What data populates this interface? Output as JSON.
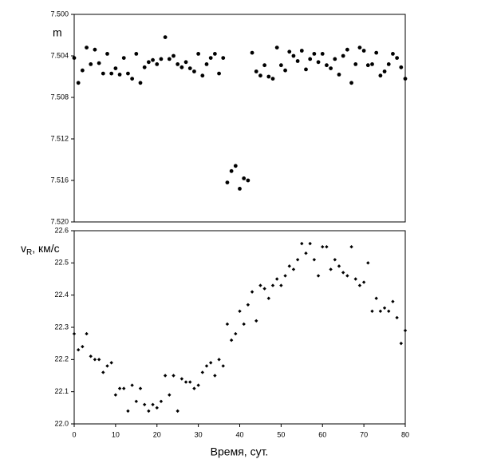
{
  "chart_data": [
    {
      "type": "scatter",
      "ylabel": "m",
      "color": "#000000",
      "marker": "circle",
      "y_inverted": true,
      "xlim": [
        0,
        80
      ],
      "ylim": [
        7.5,
        7.52
      ],
      "yticks": [
        {
          "value": 7.5,
          "label": "7.500"
        },
        {
          "value": 7.504,
          "label": "7.504"
        },
        {
          "value": 7.508,
          "label": "7.508"
        },
        {
          "value": 7.512,
          "label": "7.512"
        },
        {
          "value": 7.516,
          "label": "7.516"
        },
        {
          "value": 7.52,
          "label": "7.520"
        }
      ],
      "x": [
        0,
        1,
        2,
        3,
        4,
        5,
        6,
        7,
        8,
        9,
        10,
        11,
        12,
        13,
        14,
        15,
        16,
        17,
        18,
        19,
        20,
        21,
        22,
        23,
        24,
        25,
        26,
        27,
        28,
        29,
        30,
        31,
        32,
        33,
        34,
        35,
        36,
        37,
        38,
        39,
        40,
        41,
        42,
        43,
        44,
        45,
        46,
        47,
        48,
        49,
        50,
        51,
        52,
        53,
        54,
        55,
        56,
        57,
        58,
        59,
        60,
        61,
        62,
        63,
        64,
        65,
        66,
        67,
        68,
        69,
        70,
        71,
        72,
        73,
        74,
        75,
        76,
        77,
        78,
        79,
        80
      ],
      "values": [
        7.5042,
        7.5066,
        7.5054,
        7.5032,
        7.5048,
        7.5034,
        7.5047,
        7.5057,
        7.5038,
        7.5057,
        7.5052,
        7.5058,
        7.5042,
        7.5057,
        7.5062,
        7.5038,
        7.5066,
        7.5051,
        7.5046,
        7.5044,
        7.5048,
        7.5043,
        7.5022,
        7.5043,
        7.504,
        7.5048,
        7.5051,
        7.5046,
        7.5052,
        7.5055,
        7.5038,
        7.5059,
        7.5048,
        7.5042,
        7.5038,
        7.5057,
        7.5042,
        7.5162,
        7.5151,
        7.5146,
        7.5168,
        7.5158,
        7.516,
        7.5037,
        7.5055,
        7.5059,
        7.5049,
        7.506,
        7.5062,
        7.5032,
        7.5049,
        7.5054,
        7.5036,
        7.504,
        7.5045,
        7.5035,
        7.5053,
        7.5043,
        7.5038,
        7.5046,
        7.5038,
        7.5049,
        7.5052,
        7.5043,
        7.5058,
        7.504,
        7.5034,
        7.5066,
        7.5048,
        7.5032,
        7.5035,
        7.5049,
        7.5048,
        7.5037,
        7.5059,
        7.5055,
        7.5048,
        7.5038,
        7.5042,
        7.5051,
        7.5062
      ]
    },
    {
      "type": "scatter",
      "ylabel": [
        "v",
        "R",
        ", км/с"
      ],
      "xlabel": "Время, сут.",
      "color": "#000000",
      "marker": "diamond",
      "xlim": [
        0,
        80
      ],
      "xticks": [
        0,
        10,
        20,
        30,
        40,
        50,
        60,
        70,
        80
      ],
      "ylim": [
        22.0,
        22.6
      ],
      "yticks": [
        {
          "value": 22.0,
          "label": "22.0"
        },
        22.1,
        22.2,
        22.3,
        22.4,
        22.5,
        22.6
      ],
      "x": [
        0,
        1,
        2,
        3,
        4,
        5,
        6,
        7,
        8,
        9,
        10,
        11,
        12,
        13,
        14,
        15,
        16,
        17,
        18,
        19,
        20,
        21,
        22,
        23,
        24,
        25,
        26,
        27,
        28,
        29,
        30,
        31,
        32,
        33,
        34,
        35,
        36,
        37,
        38,
        39,
        40,
        41,
        42,
        43,
        44,
        45,
        46,
        47,
        48,
        49,
        50,
        51,
        52,
        53,
        54,
        55,
        56,
        57,
        58,
        59,
        60,
        61,
        62,
        63,
        64,
        65,
        66,
        67,
        68,
        69,
        70,
        71,
        72,
        73,
        74,
        75,
        76,
        77,
        78,
        79,
        80
      ],
      "values": [
        22.28,
        22.23,
        22.24,
        22.28,
        22.21,
        22.2,
        22.2,
        22.16,
        22.18,
        22.19,
        22.09,
        22.11,
        22.11,
        22.04,
        22.12,
        22.07,
        22.11,
        22.06,
        22.04,
        22.06,
        22.05,
        22.07,
        22.15,
        22.09,
        22.15,
        22.04,
        22.14,
        22.13,
        22.13,
        22.11,
        22.12,
        22.16,
        22.18,
        22.19,
        22.15,
        22.2,
        22.18,
        22.31,
        22.26,
        22.28,
        22.35,
        22.31,
        22.37,
        22.41,
        22.32,
        22.43,
        22.42,
        22.39,
        22.43,
        22.45,
        22.43,
        22.46,
        22.49,
        22.48,
        22.51,
        22.56,
        22.53,
        22.56,
        22.51,
        22.46,
        22.55,
        22.55,
        22.48,
        22.51,
        22.49,
        22.47,
        22.46,
        22.55,
        22.45,
        22.43,
        22.44,
        22.5,
        22.35,
        22.39,
        22.35,
        22.36,
        22.35,
        22.38,
        22.33,
        22.25,
        22.29
      ]
    }
  ]
}
